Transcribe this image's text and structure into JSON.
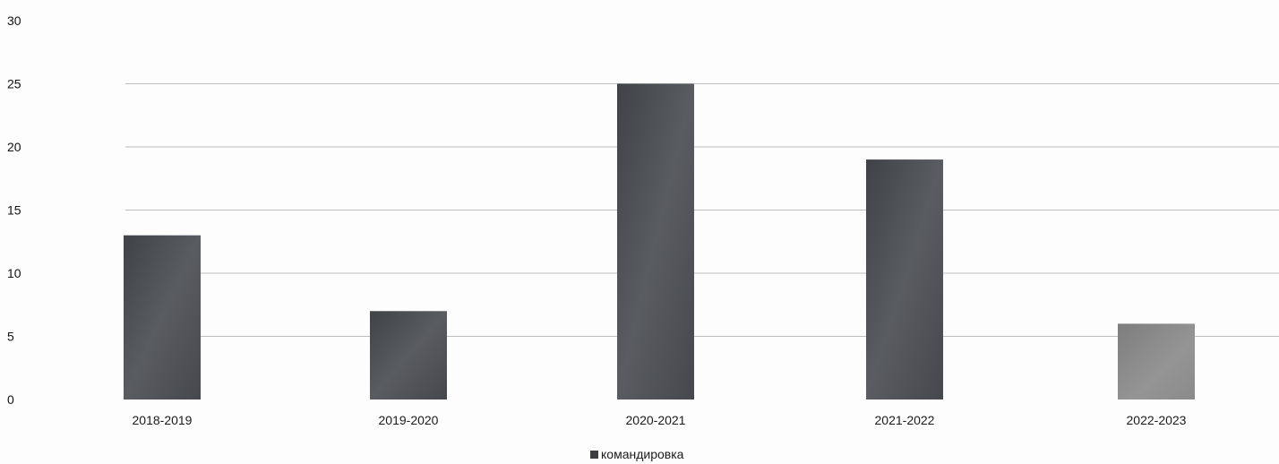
{
  "chart_data": {
    "type": "bar",
    "title": "",
    "xlabel": "",
    "ylabel": "",
    "categories": [
      "2018-2019",
      "2019-2020",
      "2020-2021",
      "2021-2022",
      "2022-2023"
    ],
    "series": [
      {
        "name": "командировка",
        "values": [
          13,
          7,
          25,
          19,
          6
        ]
      }
    ],
    "ylim": [
      0,
      30
    ],
    "yticks": [
      0,
      5,
      10,
      15,
      20,
      25,
      30
    ],
    "grid": true,
    "legend_position": "bottom"
  },
  "colors": {
    "bar_fill": "#4a4d52",
    "bar_fill_light": "#8a8a8a",
    "gridline": "#bdbdbd",
    "legend_marker": "#3b3d41"
  }
}
